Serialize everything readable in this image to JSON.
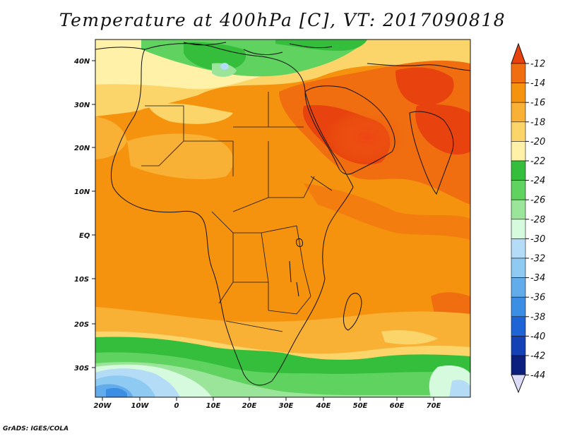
{
  "title": "Temperature at 400hPa [C], VT: 2017090818",
  "credit": "GrADS: IGES/COLA",
  "x_ticks": [
    "20W",
    "10W",
    "0",
    "10E",
    "20E",
    "30E",
    "40E",
    "50E",
    "60E",
    "70E"
  ],
  "y_ticks": [
    "40N",
    "30N",
    "20N",
    "10N",
    "EQ",
    "10S",
    "20S",
    "30S"
  ],
  "colorbar": {
    "levels": [
      "-12",
      "-14",
      "-16",
      "-18",
      "-20",
      "-22",
      "-24",
      "-26",
      "-28",
      "-30",
      "-32",
      "-34",
      "-36",
      "-38",
      "-40",
      "-42",
      "-44"
    ],
    "colors": [
      "#e8420e",
      "#f06d10",
      "#f5930f",
      "#f8b035",
      "#fbd46a",
      "#fff1a8",
      "#35be3c",
      "#5fd25f",
      "#9ae59a",
      "#d6fadd",
      "#b4dcf6",
      "#8ecaf1",
      "#62aceb",
      "#3c8ee5",
      "#1f64d6",
      "#1442b6",
      "#0b1f7e"
    ],
    "top_arrow_color": "#e8420e",
    "bottom_arrow_color": "#dcdcf8"
  }
}
